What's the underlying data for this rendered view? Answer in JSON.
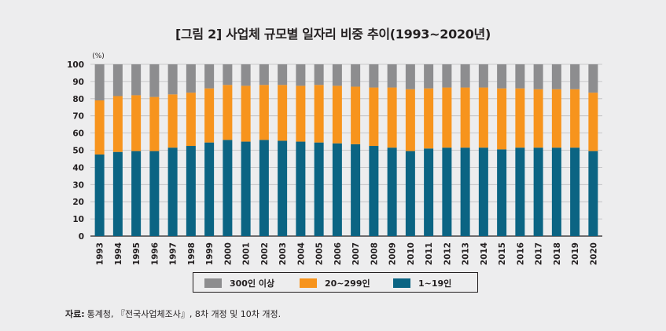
{
  "chart_data": {
    "type": "bar",
    "stacked": true,
    "title": "[그림 2] 사업체 규모별 일자리 비중 추이(1993~2020년)",
    "ylabel": "(%)",
    "xlabel": "",
    "ylim": [
      0,
      100
    ],
    "yticks": [
      0,
      10,
      20,
      30,
      40,
      50,
      60,
      70,
      80,
      90,
      100
    ],
    "grid": true,
    "legend_position": "bottom",
    "categories": [
      "1993",
      "1994",
      "1995",
      "1996",
      "1997",
      "1998",
      "1999",
      "2000",
      "2001",
      "2002",
      "2003",
      "2004",
      "2005",
      "2006",
      "2007",
      "2008",
      "2009",
      "2010",
      "2011",
      "2012",
      "2013",
      "2014",
      "2015",
      "2016",
      "2017",
      "2018",
      "2019",
      "2020"
    ],
    "series": [
      {
        "name": "1~19인",
        "color": "#0b6483",
        "values": [
          47.5,
          49,
          49.5,
          49.5,
          51.5,
          52.5,
          54.5,
          56,
          55,
          56,
          55.5,
          55,
          54.5,
          54,
          53.5,
          52.5,
          51.5,
          49.5,
          51,
          51.5,
          51.5,
          51.5,
          50.5,
          51.5,
          51.5,
          51.5,
          51.5,
          49.5
        ]
      },
      {
        "name": "20~299인",
        "color": "#f7941d",
        "values": [
          31.5,
          32.5,
          32.5,
          31.5,
          31,
          31,
          31.5,
          32,
          32.5,
          32,
          32.5,
          32.5,
          33.5,
          33.5,
          33.5,
          34,
          35,
          36,
          35,
          35,
          35,
          35,
          35.5,
          34.5,
          34,
          34,
          34,
          34
        ]
      },
      {
        "name": "300인 이상",
        "color": "#8d8d8f",
        "values": [
          21,
          18.5,
          18,
          19,
          17.5,
          16.5,
          14,
          12,
          12.5,
          12,
          12,
          12.5,
          12,
          12.5,
          13,
          13.5,
          13.5,
          14.5,
          14,
          13.5,
          13.5,
          13.5,
          14,
          14,
          14.5,
          14.5,
          14.5,
          16.5
        ]
      }
    ]
  },
  "legend": [
    {
      "label": "300인 이상",
      "color": "#8d8d8f"
    },
    {
      "label": "20~299인",
      "color": "#f7941d"
    },
    {
      "label": "1~19인",
      "color": "#0b6483"
    }
  ],
  "source": {
    "prefix": "자료:",
    "text": "통계청, 『전국사업체조사』, 8차 개정 및 10차 개정."
  }
}
